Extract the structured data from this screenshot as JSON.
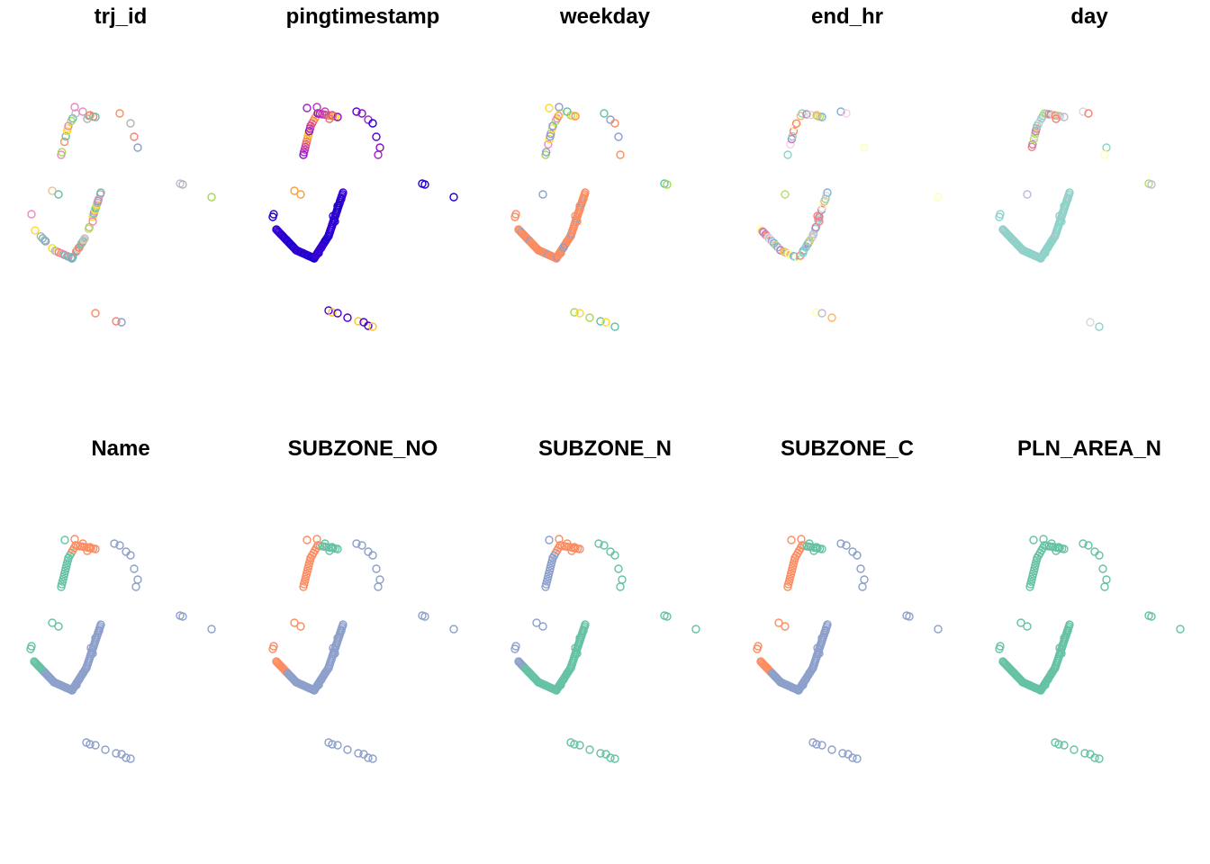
{
  "figure": {
    "panel_titles": [
      "trj_id",
      "pingtimestamp",
      "weekday",
      "end_hr",
      "day",
      "Name",
      "SUBZONE_NO",
      "SUBZONE_N",
      "SUBZONE_C",
      "PLN_AREA_N"
    ]
  },
  "chart_data": {
    "type": "scatter",
    "layout": "small multiples, 2 rows x 5 columns, identical point geometry per panel, color mapped to the titled attribute",
    "axes": "none",
    "grid": false,
    "legend": "none",
    "marker": "open circle",
    "panels": [
      {
        "title": "trj_id",
        "coloring": "categorical",
        "palette": [
          "#E78AC3",
          "#A6D854",
          "#FFD92F",
          "#E5C494",
          "#B3B3B3",
          "#66C2A5",
          "#FC8D62",
          "#8DA0CB",
          "#FB8072",
          "#BEBADA"
        ]
      },
      {
        "title": "pingtimestamp",
        "coloring": "continuous",
        "palette": [
          "#0000CD",
          "#7B00D4",
          "#B430C4",
          "#E0508C",
          "#F9A03F",
          "#FFE600"
        ]
      },
      {
        "title": "weekday",
        "coloring": "categorical",
        "palette": [
          "#FC8D62",
          "#66C2A5",
          "#8DA0CB",
          "#E78AC3",
          "#A6D854",
          "#FFD92F"
        ]
      },
      {
        "title": "end_hr",
        "coloring": "categorical",
        "palette": [
          "#8DD3C7",
          "#FFFFB3",
          "#BEBADA",
          "#FB8072",
          "#80B1D3",
          "#FDB462",
          "#B3DE69",
          "#FCCDE5",
          "#D9D9D9",
          "#BC80BD"
        ]
      },
      {
        "title": "day",
        "coloring": "categorical",
        "palette": [
          "#8DD3C7",
          "#BEBADA",
          "#FB8072",
          "#B3DE69",
          "#FFFFB3",
          "#D9D9D9",
          "#BC80BD"
        ]
      },
      {
        "title": "Name",
        "coloring": "categorical",
        "palette": [
          "#66C2A5",
          "#FC8D62",
          "#8DA0CB"
        ]
      },
      {
        "title": "SUBZONE_NO",
        "coloring": "categorical",
        "palette": [
          "#66C2A5",
          "#FC8D62",
          "#8DA0CB"
        ]
      },
      {
        "title": "SUBZONE_N",
        "coloring": "categorical",
        "palette": [
          "#66C2A5",
          "#FC8D62",
          "#8DA0CB"
        ]
      },
      {
        "title": "SUBZONE_C",
        "coloring": "categorical",
        "palette": [
          "#66C2A5",
          "#FC8D62",
          "#8DA0CB"
        ]
      },
      {
        "title": "PLN_AREA_N",
        "coloring": "categorical",
        "palette": [
          "#66C2A5"
        ]
      }
    ]
  }
}
